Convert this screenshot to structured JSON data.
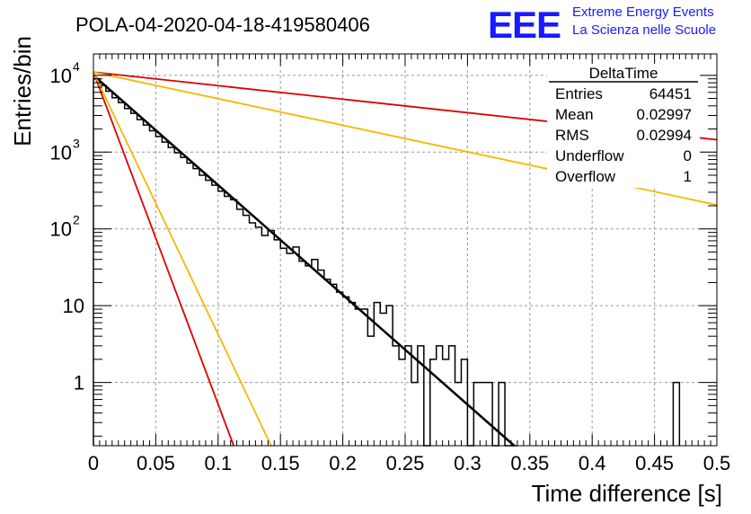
{
  "chart_data": {
    "type": "histogram",
    "title": "POLA-04-2020-04-18-419580406",
    "xlabel": "Time difference [s]",
    "ylabel": "Entries/bin",
    "xlim": [
      0,
      0.5
    ],
    "ylim": [
      0.15,
      19000
    ],
    "yscale": "log",
    "grid": true,
    "x_ticks": [
      "0",
      "0.05",
      "0.1",
      "0.15",
      "0.2",
      "0.25",
      "0.3",
      "0.35",
      "0.4",
      "0.45",
      "0.5"
    ],
    "y_ticks": [
      "1",
      "10",
      "10",
      "10",
      "10"
    ],
    "y_tick_exponents": [
      "",
      "",
      "2",
      "3",
      "4"
    ],
    "y_tick_values": [
      1,
      10,
      100,
      1000,
      10000
    ],
    "bin_width": 0.005,
    "histogram": {
      "x": [
        0.0025,
        0.0075,
        0.0125,
        0.0175,
        0.0225,
        0.0275,
        0.0325,
        0.0375,
        0.0425,
        0.0475,
        0.0525,
        0.0575,
        0.0625,
        0.0675,
        0.0725,
        0.0775,
        0.0825,
        0.0875,
        0.0925,
        0.0975,
        0.1025,
        0.1075,
        0.1125,
        0.1175,
        0.1225,
        0.1275,
        0.1325,
        0.1375,
        0.1425,
        0.1475,
        0.1525,
        0.1575,
        0.1625,
        0.1675,
        0.1725,
        0.1775,
        0.1825,
        0.1875,
        0.1925,
        0.1975,
        0.2025,
        0.2075,
        0.2125,
        0.2175,
        0.2225,
        0.2275,
        0.2325,
        0.2375,
        0.2425,
        0.2475,
        0.2525,
        0.2575,
        0.2625,
        0.2675,
        0.2725,
        0.2775,
        0.2825,
        0.2875,
        0.2925,
        0.2975,
        0.3025,
        0.3075,
        0.3125,
        0.3175,
        0.3225,
        0.3275,
        0.3325,
        0.3375,
        0.4675
      ],
      "values": [
        9000,
        7400,
        6200,
        5100,
        4400,
        3700,
        3200,
        2650,
        2250,
        1900,
        1600,
        1350,
        1150,
        980,
        850,
        720,
        610,
        500,
        430,
        370,
        310,
        265,
        240,
        180,
        150,
        120,
        105,
        82,
        95,
        72,
        56,
        48,
        58,
        38,
        33,
        40,
        29,
        22,
        19,
        15,
        13,
        11,
        9,
        9,
        4,
        11,
        8,
        10,
        3,
        2,
        3,
        1,
        3,
        0,
        2,
        3,
        2,
        3,
        1,
        2,
        0,
        1,
        1,
        1,
        0,
        1,
        0,
        0,
        1
      ],
      "color": "#000000"
    },
    "series": [
      {
        "name": "",
        "type": "function",
        "x": [
          0,
          0.3375
        ],
        "values": [
          10000,
          0.15
        ],
        "color": "#000000"
      },
      {
        "name": "",
        "type": "function",
        "x": [
          0,
          0.5
        ],
        "values": [
          11000,
          1450
        ],
        "color": "#dd0000"
      },
      {
        "name": "",
        "type": "function",
        "x": [
          0,
          0.5
        ],
        "values": [
          11000,
          205
        ],
        "color": "#f5b800"
      },
      {
        "name": "",
        "type": "function",
        "x": [
          0,
          0.1125
        ],
        "values": [
          11000,
          0.15
        ],
        "color": "#dd0000"
      },
      {
        "name": "",
        "type": "function",
        "x": [
          0,
          0.1425
        ],
        "values": [
          11000,
          0.15
        ],
        "color": "#f5b800"
      }
    ],
    "stats_box": {
      "title": "DeltaTime",
      "rows": [
        {
          "label": "Entries",
          "value": "64451"
        },
        {
          "label": "Mean",
          "value": "0.02997"
        },
        {
          "label": "RMS",
          "value": "0.02994"
        },
        {
          "label": "Underflow",
          "value": "0"
        },
        {
          "label": "Overflow",
          "value": "1"
        }
      ]
    }
  },
  "logo": {
    "text": "EEE",
    "line1": "Extreme Energy Events",
    "line2": "La Scienza nelle Scuole",
    "color": "#1a1aff"
  }
}
